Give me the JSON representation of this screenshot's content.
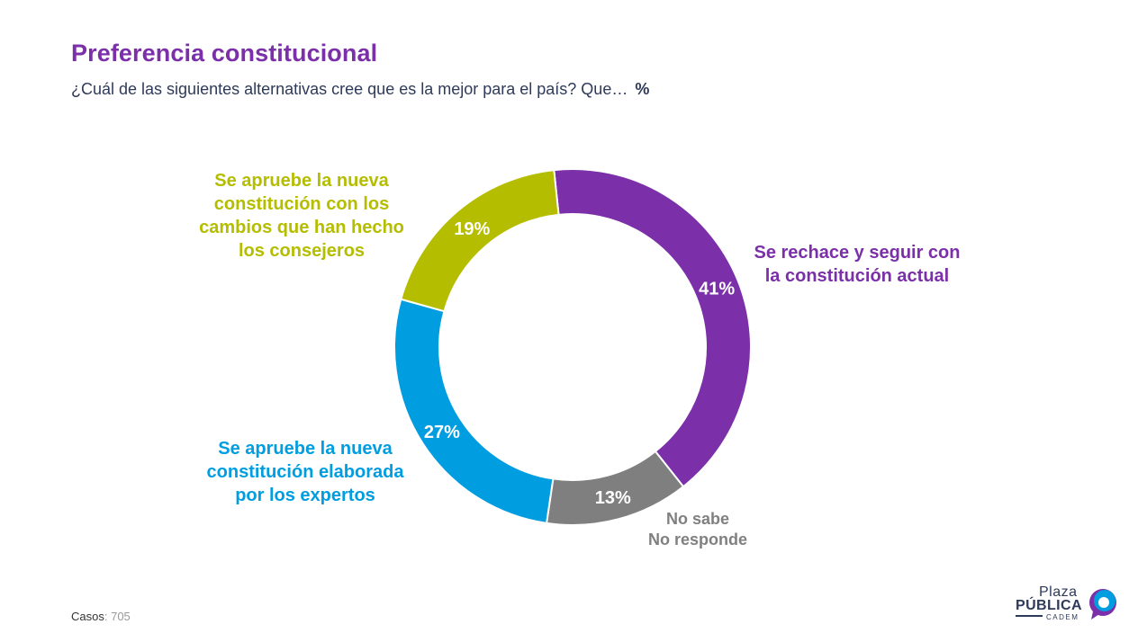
{
  "header": {
    "title": "Preferencia constitucional",
    "subtitle": "¿Cuál de las siguientes alternativas cree que es la mejor para el país? Que…",
    "unit": "%"
  },
  "chart_data": {
    "type": "pie",
    "donut": true,
    "series": [
      {
        "label": [
          "Se rechace y seguir con",
          "la constitución actual"
        ],
        "value": 41,
        "display": "41%",
        "color": "#7b2fa8"
      },
      {
        "label": [
          "No sabe",
          "No responde"
        ],
        "value": 13,
        "display": "13%",
        "color": "#7f7f7f",
        "label_color": "#808080"
      },
      {
        "label": [
          "Se apruebe la nueva",
          "constitución elaborada",
          "por los expertos"
        ],
        "value": 27,
        "display": "27%",
        "color": "#009ee0"
      },
      {
        "label": [
          "Se apruebe la nueva",
          "constitución con los",
          "cambios que han hecho",
          "los consejeros"
        ],
        "value": 19,
        "display": "19%",
        "color": "#b5bd00"
      }
    ]
  },
  "footer": {
    "casos_label": "Casos",
    "casos_value": ": 705"
  },
  "logo": {
    "line1": "Plaza",
    "line2": "PÚBLICA",
    "line3": "CADEM"
  }
}
